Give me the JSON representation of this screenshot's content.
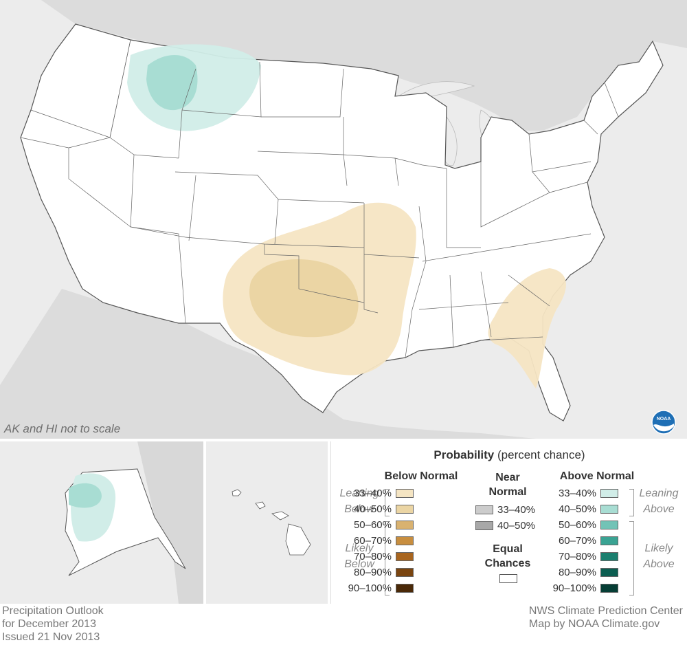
{
  "map": {
    "scale_note": "AK and HI not to scale"
  },
  "legend": {
    "title_bold": "Probability",
    "title_rest": "(percent chance)",
    "below": {
      "heading": "Below Normal",
      "leaning_label": "Leaning Below",
      "likely_label": "Likely Below",
      "rows": [
        {
          "label": "33–40%",
          "color": "#f5e5c3"
        },
        {
          "label": "40–50%",
          "color": "#ebd5a4"
        },
        {
          "label": "50–60%",
          "color": "#d9b270"
        },
        {
          "label": "60–70%",
          "color": "#c88e3f"
        },
        {
          "label": "70–80%",
          "color": "#a8651f"
        },
        {
          "label": "80–90%",
          "color": "#7a4510"
        },
        {
          "label": "90–100%",
          "color": "#4a2908"
        }
      ]
    },
    "near": {
      "heading": "Near Normal",
      "rows": [
        {
          "label": "33–40%",
          "color": "#cccccc"
        },
        {
          "label": "40–50%",
          "color": "#a8a8a8"
        }
      ],
      "equal_heading": "Equal Chances",
      "equal_color": "#ffffff"
    },
    "above": {
      "heading": "Above Normal",
      "leaning_label": "Leaning Above",
      "likely_label": "Likely Above",
      "rows": [
        {
          "label": "33–40%",
          "color": "#d1ede8"
        },
        {
          "label": "40–50%",
          "color": "#a8ddd3"
        },
        {
          "label": "50–60%",
          "color": "#72c3b6"
        },
        {
          "label": "60–70%",
          "color": "#3aa393"
        },
        {
          "label": "70–80%",
          "color": "#1b7f6f"
        },
        {
          "label": "80–90%",
          "color": "#0c5e51"
        },
        {
          "label": "90–100%",
          "color": "#063e35"
        }
      ]
    }
  },
  "footer": {
    "left_line1": "Precipitation Outlook",
    "left_line2": "for December 2013",
    "left_line3": "Issued 21 Nov 2013",
    "right_line1": "NWS Climate Prediction Center",
    "right_line2": "Map by NOAA Climate.gov"
  },
  "logo": "NOAA"
}
